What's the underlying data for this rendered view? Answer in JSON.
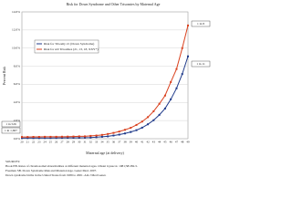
{
  "chart_data": {
    "type": "line",
    "title": "Risk for Down Syndrome and Other Trisomies by Maternal Age",
    "x_label": "Maternal age (at delivery)",
    "y_label": "Percent Risk",
    "categories": [
      "20",
      "21",
      "22",
      "23",
      "24",
      "25",
      "26",
      "27",
      "28",
      "29",
      "30",
      "31",
      "32",
      "33",
      "34",
      "35",
      "36",
      "37",
      "38",
      "39",
      "40",
      "41",
      "42",
      "43",
      "44",
      "45",
      "46",
      "47",
      "48",
      "49"
    ],
    "series": [
      {
        "name": "Risk for Trisomy 21 (Down Syndrome)",
        "color": "#1f3a8a",
        "values": [
          0.06,
          0.07,
          0.07,
          0.07,
          0.08,
          0.08,
          0.085,
          0.09,
          0.095,
          0.1,
          0.105,
          0.11,
          0.13,
          0.17,
          0.21,
          0.26,
          0.35,
          0.45,
          0.58,
          0.74,
          0.94,
          1.22,
          1.59,
          2.04,
          2.63,
          3.33,
          4.35,
          5.56,
          7.14,
          9.09
        ]
      },
      {
        "name": "Risk for All Trisomies (21, 13, 18, XXY*)",
        "color": "#d9411e",
        "values": [
          0.19,
          0.19,
          0.2,
          0.2,
          0.21,
          0.21,
          0.21,
          0.22,
          0.23,
          0.24,
          0.26,
          0.26,
          0.31,
          0.35,
          0.42,
          0.52,
          0.64,
          0.79,
          0.98,
          1.2,
          1.52,
          1.89,
          2.38,
          3.03,
          3.85,
          4.76,
          6.25,
          7.69,
          10,
          12.5
        ]
      }
    ],
    "ylim": [
      0,
      14
    ],
    "yticks": [
      {
        "value": 0,
        "label": "0.0%"
      },
      {
        "value": 2,
        "label": "2.0%"
      },
      {
        "value": 4,
        "label": "4.0%"
      },
      {
        "value": 6,
        "label": "6.0%"
      },
      {
        "value": 8,
        "label": "8.0%"
      },
      {
        "value": 10,
        "label": "10.0%"
      },
      {
        "value": 12,
        "label": "12.0%"
      },
      {
        "value": 14,
        "label": "14.0%"
      }
    ],
    "grid": true,
    "annotations": [
      "1 in 1,667",
      "1 in 526",
      "1 in 8",
      "1 in 11"
    ],
    "sources": [
      "SOURCES:",
      "Hook EB. Rates of chromosomal abnormalities at different maternal ages. Obstet Gynecol. 1981;58:282-5.",
      "Freeman SB. Down Syndrome Risk and Maternal Age. Genet Med. 2007.",
      "Down syndrome births in the United States from 1989 to 2001. Am J Med Genet."
    ]
  }
}
